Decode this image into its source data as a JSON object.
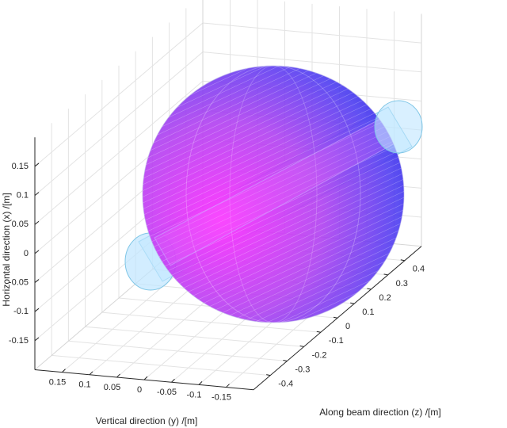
{
  "chart_data": {
    "type": "surface3d",
    "xlabel": "Horizontal direction (x) /[m]",
    "ylabel": "Vertical direction (y) /[m]",
    "zlabel": "Along beam direction (z) /[m]",
    "xlim": [
      -0.2,
      0.2
    ],
    "xticks": [
      -0.15,
      -0.1,
      -0.05,
      0,
      0.05,
      0.1,
      0.15
    ],
    "ylim": [
      -0.2,
      0.2
    ],
    "yticks": [
      -0.15,
      -0.1,
      -0.05,
      0,
      0.05,
      0.1,
      0.15
    ],
    "zlim": [
      -0.5,
      0.5
    ],
    "zticks": [
      -0.4,
      -0.3,
      -0.2,
      -0.1,
      0,
      0.1,
      0.2,
      0.3,
      0.4
    ],
    "grid": true
  }
}
